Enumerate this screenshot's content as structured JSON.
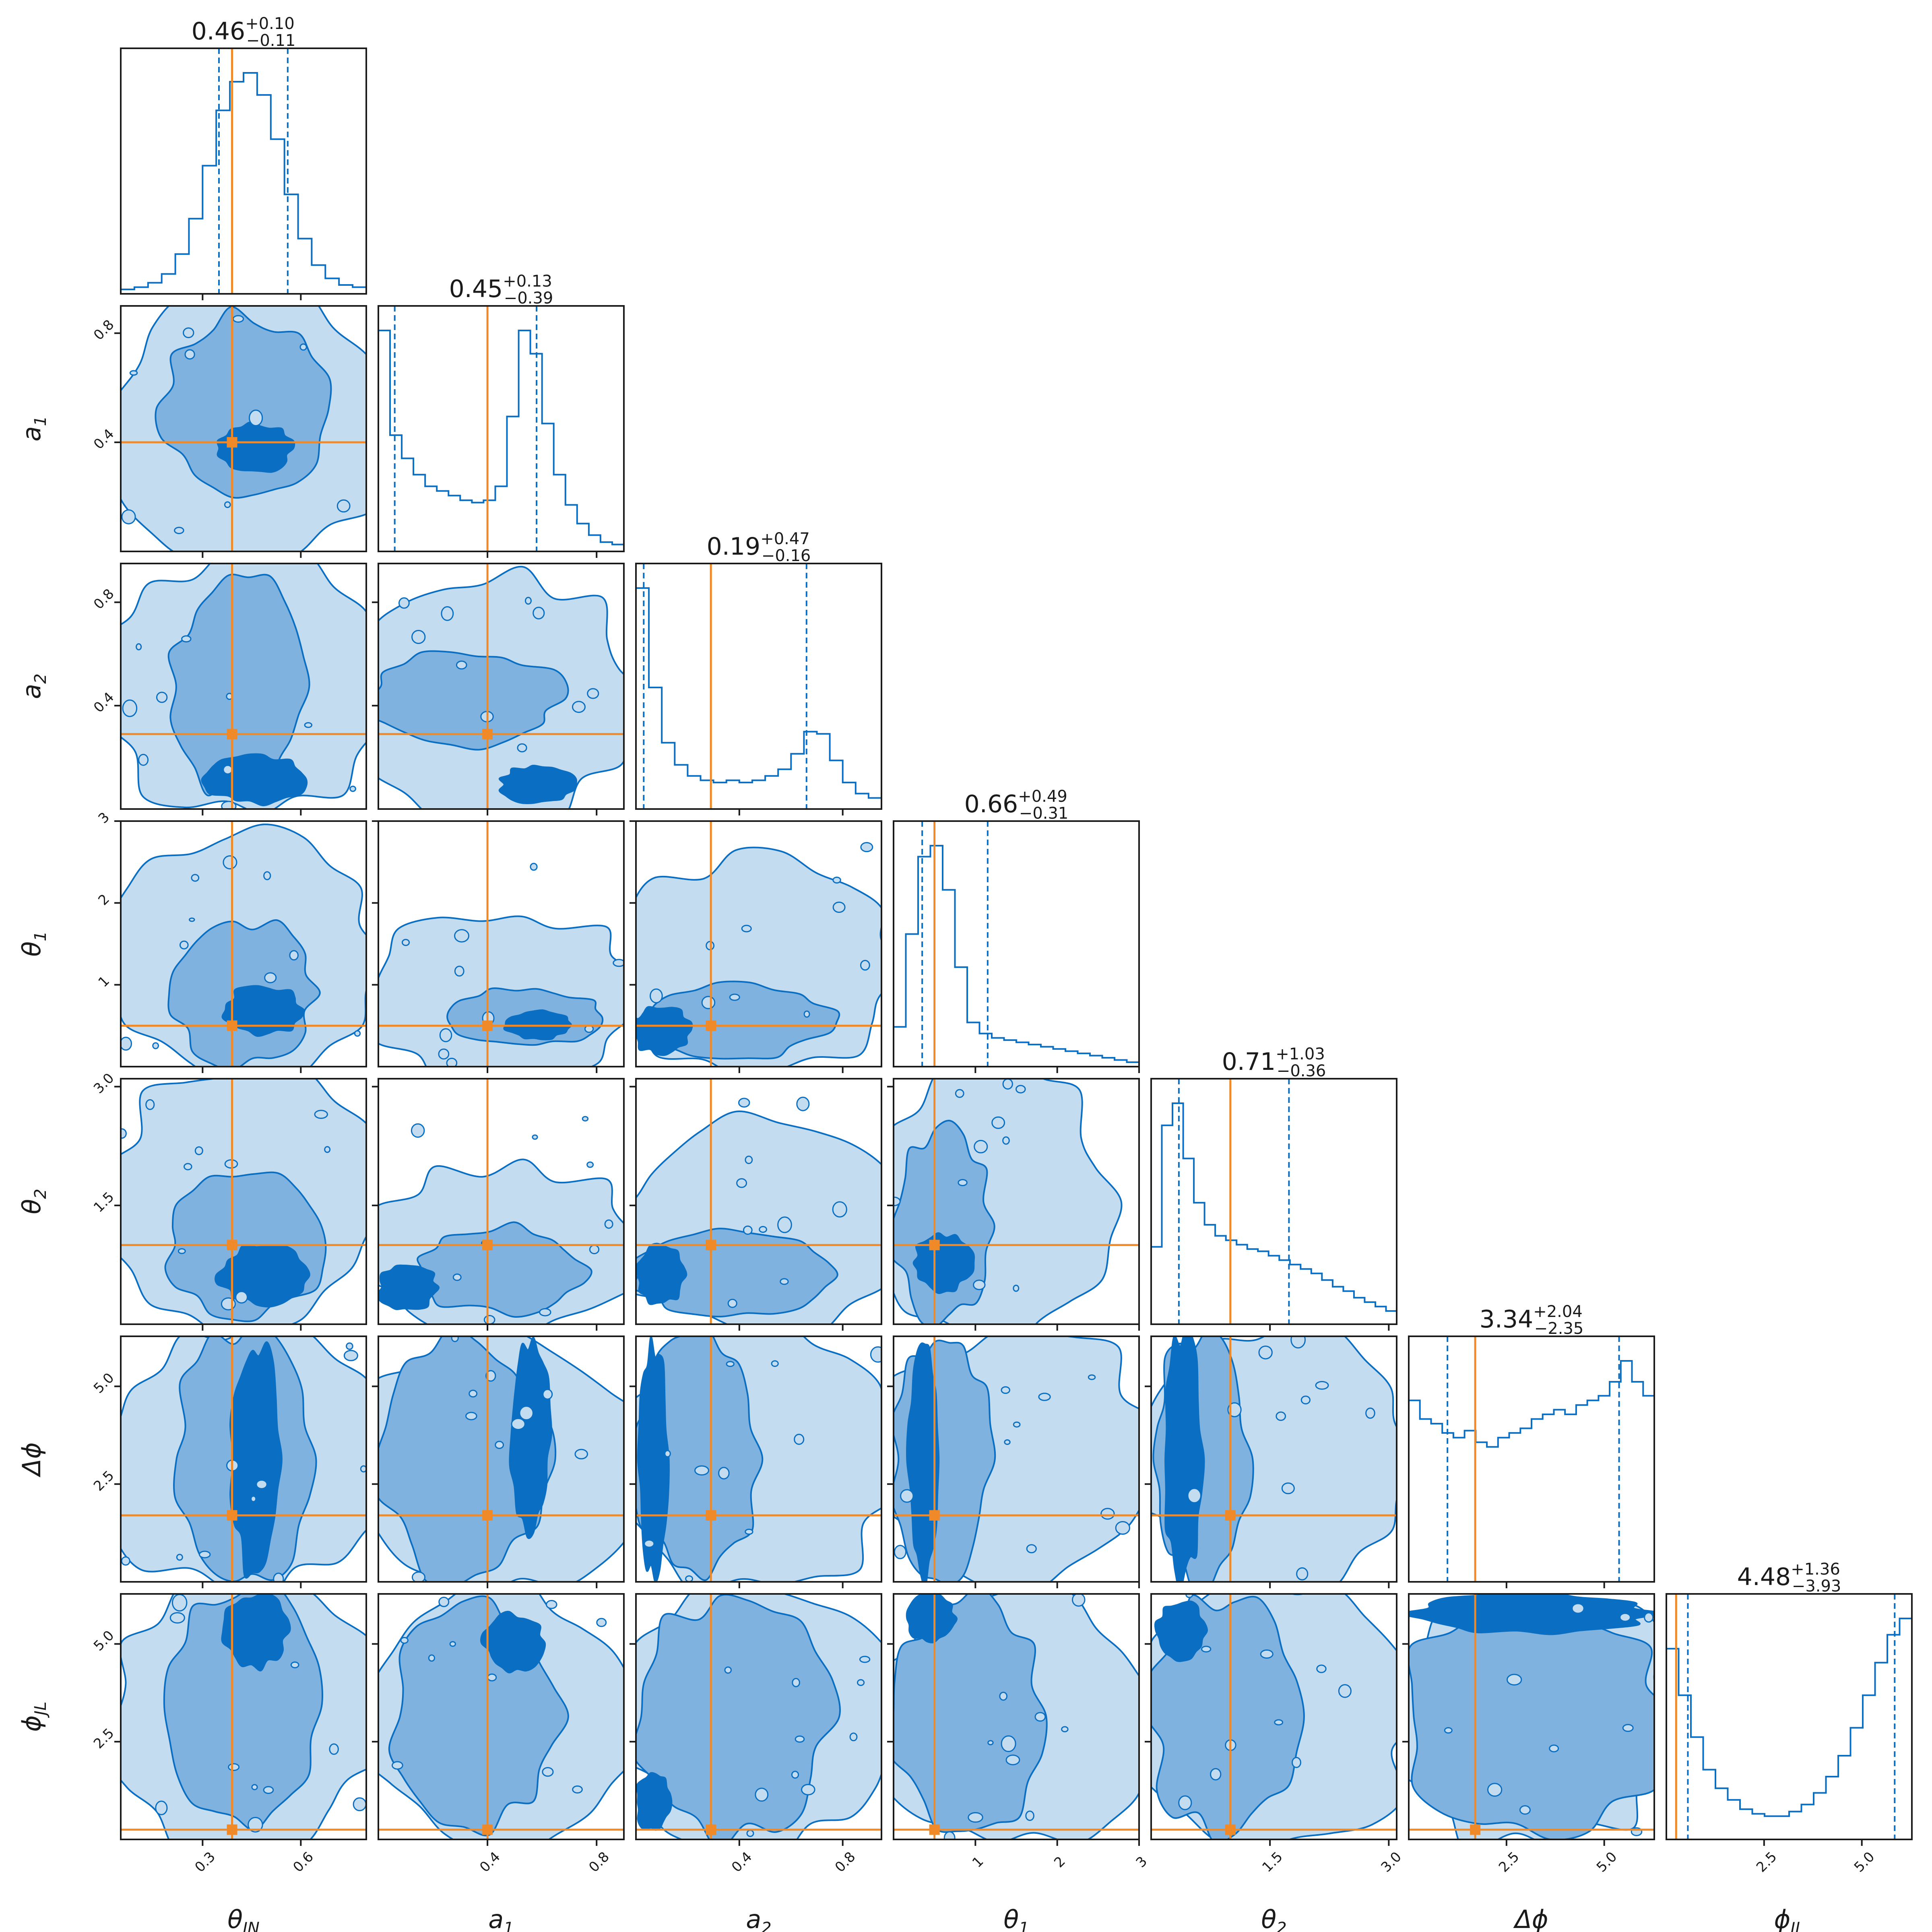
{
  "chart_data": {
    "type": "corner",
    "parameters": [
      {
        "key": "theta_jn",
        "label": "θJN",
        "label_main": "θ",
        "label_sub": "JN",
        "range": [
          0.05,
          0.8
        ],
        "ticks": [
          0.3,
          0.6
        ],
        "tick_labels": [
          "0.3",
          "0.6"
        ],
        "truth": 0.39,
        "median": 0.46,
        "err_plus": 0.1,
        "err_minus": 0.11,
        "title_main": "0.46",
        "title_plus": "+0.10",
        "title_minus": "−0.11"
      },
      {
        "key": "a_1",
        "label": "a1",
        "label_main": "a",
        "label_sub": "1",
        "range": [
          0.0,
          0.9
        ],
        "ticks": [
          0.4,
          0.8
        ],
        "tick_labels": [
          "0.4",
          "0.8"
        ],
        "truth": 0.4,
        "median": 0.45,
        "err_plus": 0.13,
        "err_minus": 0.39,
        "title_main": "0.45",
        "title_plus": "+0.13",
        "title_minus": "−0.39"
      },
      {
        "key": "a_2",
        "label": "a2",
        "label_main": "a",
        "label_sub": "2",
        "range": [
          0.0,
          0.95
        ],
        "ticks": [
          0.4,
          0.8
        ],
        "tick_labels": [
          "0.4",
          "0.8"
        ],
        "truth": 0.29,
        "median": 0.19,
        "err_plus": 0.47,
        "err_minus": 0.16,
        "title_main": "0.19",
        "title_plus": "+0.47",
        "title_minus": "−0.16"
      },
      {
        "key": "theta_1",
        "label": "θ1",
        "label_main": "θ",
        "label_sub": "1",
        "range": [
          0.0,
          3.0
        ],
        "ticks": [
          1,
          2,
          3
        ],
        "tick_labels": [
          "1",
          "2",
          "3"
        ],
        "truth": 0.5,
        "median": 0.66,
        "err_plus": 0.49,
        "err_minus": 0.31,
        "title_main": "0.66",
        "title_plus": "+0.49",
        "title_minus": "−0.31"
      },
      {
        "key": "theta_2",
        "label": "θ2",
        "label_main": "θ",
        "label_sub": "2",
        "range": [
          0.0,
          3.1
        ],
        "ticks": [
          1.5,
          3.0
        ],
        "tick_labels": [
          "1.5",
          "3.0"
        ],
        "truth": 1.0,
        "median": 0.71,
        "err_plus": 1.03,
        "err_minus": 0.36,
        "title_main": "0.71",
        "title_plus": "+1.03",
        "title_minus": "−0.36"
      },
      {
        "key": "delta_phi",
        "label": "Δϕ",
        "label_main": "Δϕ",
        "label_sub": "",
        "range": [
          0.0,
          6.28
        ],
        "ticks": [
          2.5,
          5.0
        ],
        "tick_labels": [
          "2.5",
          "5.0"
        ],
        "truth": 1.7,
        "median": 3.34,
        "err_plus": 2.04,
        "err_minus": 2.35,
        "title_main": "3.34",
        "title_plus": "+2.04",
        "title_minus": "−2.35"
      },
      {
        "key": "phi_jl",
        "label": "ϕJL",
        "label_main": "ϕ",
        "label_sub": "JL",
        "range": [
          0.0,
          6.28
        ],
        "ticks": [
          2.5,
          5.0
        ],
        "tick_labels": [
          "2.5",
          "5.0"
        ],
        "truth": 0.25,
        "median": 4.48,
        "err_plus": 1.36,
        "err_minus": 3.93,
        "title_main": "4.48",
        "title_plus": "+1.36",
        "title_minus": "−3.93"
      }
    ],
    "histograms_1d": [
      {
        "param": "theta_jn",
        "values": [
          0.02,
          0.03,
          0.05,
          0.09,
          0.18,
          0.34,
          0.58,
          0.83,
          0.96,
          1.0,
          0.9,
          0.7,
          0.45,
          0.25,
          0.13,
          0.07,
          0.04,
          0.03
        ]
      },
      {
        "param": "a_1",
        "values": [
          0.95,
          0.5,
          0.4,
          0.33,
          0.28,
          0.26,
          0.24,
          0.22,
          0.21,
          0.22,
          0.28,
          0.58,
          0.95,
          0.85,
          0.55,
          0.33,
          0.2,
          0.12,
          0.07,
          0.04,
          0.03
        ]
      },
      {
        "param": "a_2",
        "values": [
          1.0,
          0.55,
          0.3,
          0.2,
          0.15,
          0.13,
          0.12,
          0.13,
          0.12,
          0.13,
          0.15,
          0.18,
          0.25,
          0.35,
          0.34,
          0.22,
          0.12,
          0.07,
          0.05
        ]
      },
      {
        "param": "theta_1",
        "values": [
          0.18,
          0.6,
          0.95,
          1.0,
          0.8,
          0.45,
          0.2,
          0.15,
          0.13,
          0.12,
          0.11,
          0.1,
          0.09,
          0.08,
          0.07,
          0.06,
          0.05,
          0.04,
          0.03,
          0.02
        ]
      },
      {
        "param": "theta_2",
        "values": [
          0.35,
          0.9,
          1.0,
          0.75,
          0.55,
          0.45,
          0.4,
          0.38,
          0.36,
          0.34,
          0.33,
          0.31,
          0.29,
          0.27,
          0.25,
          0.23,
          0.2,
          0.17,
          0.15,
          0.12,
          0.1,
          0.08,
          0.06
        ]
      },
      {
        "param": "delta_phi",
        "values": [
          0.78,
          0.7,
          0.68,
          0.64,
          0.62,
          0.65,
          0.6,
          0.58,
          0.62,
          0.64,
          0.66,
          0.7,
          0.72,
          0.74,
          0.72,
          0.76,
          0.78,
          0.8,
          0.86,
          0.95,
          0.86,
          0.8
        ]
      },
      {
        "param": "phi_jl",
        "values": [
          0.82,
          0.62,
          0.44,
          0.3,
          0.22,
          0.17,
          0.13,
          0.11,
          0.1,
          0.1,
          0.12,
          0.15,
          0.2,
          0.27,
          0.36,
          0.48,
          0.62,
          0.76,
          0.88,
          0.95
        ]
      }
    ],
    "contour_levels": [
      "outer",
      "middle",
      "inner"
    ],
    "colors": {
      "contour_outer": "#c4dcf0",
      "contour_middle": "#7fb2de",
      "contour_inner": "#0a6fc2",
      "line": "#0a6fc2",
      "truth": "#f08a28",
      "frame": "#1a1a1a"
    },
    "grid": false
  }
}
